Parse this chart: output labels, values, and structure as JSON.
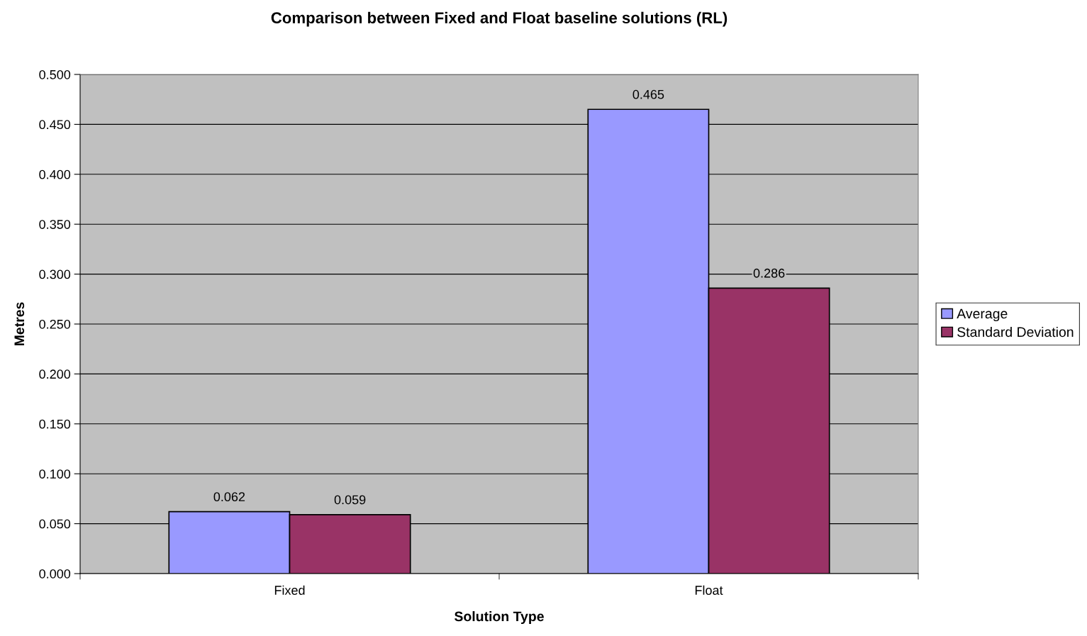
{
  "chart_data": {
    "type": "bar",
    "title": "Comparison between Fixed and Float baseline solutions (RL)",
    "xlabel": "Solution Type",
    "ylabel": "Metres",
    "categories": [
      "Fixed",
      "Float"
    ],
    "series": [
      {
        "name": "Average",
        "color": "#9999ff",
        "values": [
          0.062,
          0.465
        ]
      },
      {
        "name": "Standard Deviation",
        "color": "#993366",
        "values": [
          0.059,
          0.286
        ]
      }
    ],
    "ylim": [
      0,
      0.5
    ],
    "yticks": [
      {
        "value": 0,
        "label": "0.000"
      },
      {
        "value": 0.05,
        "label": "0.050"
      },
      {
        "value": 0.1,
        "label": "0.100"
      },
      {
        "value": 0.15,
        "label": "0.150"
      },
      {
        "value": 0.2,
        "label": "0.200"
      },
      {
        "value": 0.25,
        "label": "0.250"
      },
      {
        "value": 0.3,
        "label": "0.300"
      },
      {
        "value": 0.35,
        "label": "0.350"
      },
      {
        "value": 0.4,
        "label": "0.400"
      },
      {
        "value": 0.45,
        "label": "0.450"
      },
      {
        "value": 0.5,
        "label": "0.500"
      }
    ],
    "grid": "y",
    "legend": "right",
    "data_labels": true
  }
}
